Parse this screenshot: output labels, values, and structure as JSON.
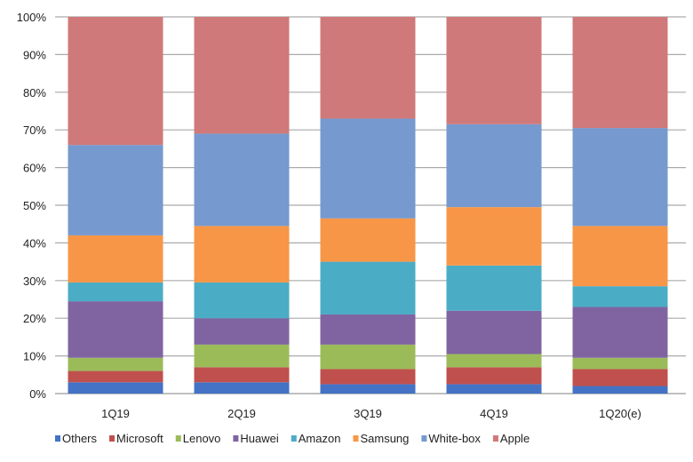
{
  "chart_data": {
    "type": "bar",
    "stacked": true,
    "percent": true,
    "categories": [
      "1Q19",
      "2Q19",
      "3Q19",
      "4Q19",
      "1Q20(e)"
    ],
    "ylim": [
      0,
      100
    ],
    "yticks": [
      "0%",
      "10%",
      "20%",
      "30%",
      "40%",
      "50%",
      "60%",
      "70%",
      "80%",
      "90%",
      "100%"
    ],
    "grid": true,
    "legend": "bottom",
    "series": [
      {
        "name": "Others",
        "color": "#4472c4",
        "values": [
          3,
          3,
          2.5,
          2.5,
          2
        ]
      },
      {
        "name": "Microsoft",
        "color": "#c0504d",
        "values": [
          3,
          4,
          4,
          4.5,
          4.5
        ]
      },
      {
        "name": "Lenovo",
        "color": "#9bbb59",
        "values": [
          3.5,
          6,
          6.5,
          3.5,
          3
        ]
      },
      {
        "name": "Huawei",
        "color": "#8064a2",
        "values": [
          15,
          7,
          8,
          11.5,
          13.5
        ]
      },
      {
        "name": "Amazon",
        "color": "#4bacc6",
        "values": [
          5,
          9.5,
          14,
          12,
          5.5
        ]
      },
      {
        "name": "Samsung",
        "color": "#f79646",
        "values": [
          12.5,
          15,
          11.5,
          15.5,
          16
        ]
      },
      {
        "name": "White-box",
        "color": "#7699cf",
        "values": [
          24,
          24.5,
          26.5,
          22,
          26
        ]
      },
      {
        "name": "Apple",
        "color": "#d0797a",
        "values": [
          34,
          31,
          27,
          28.5,
          29.5
        ]
      }
    ]
  }
}
